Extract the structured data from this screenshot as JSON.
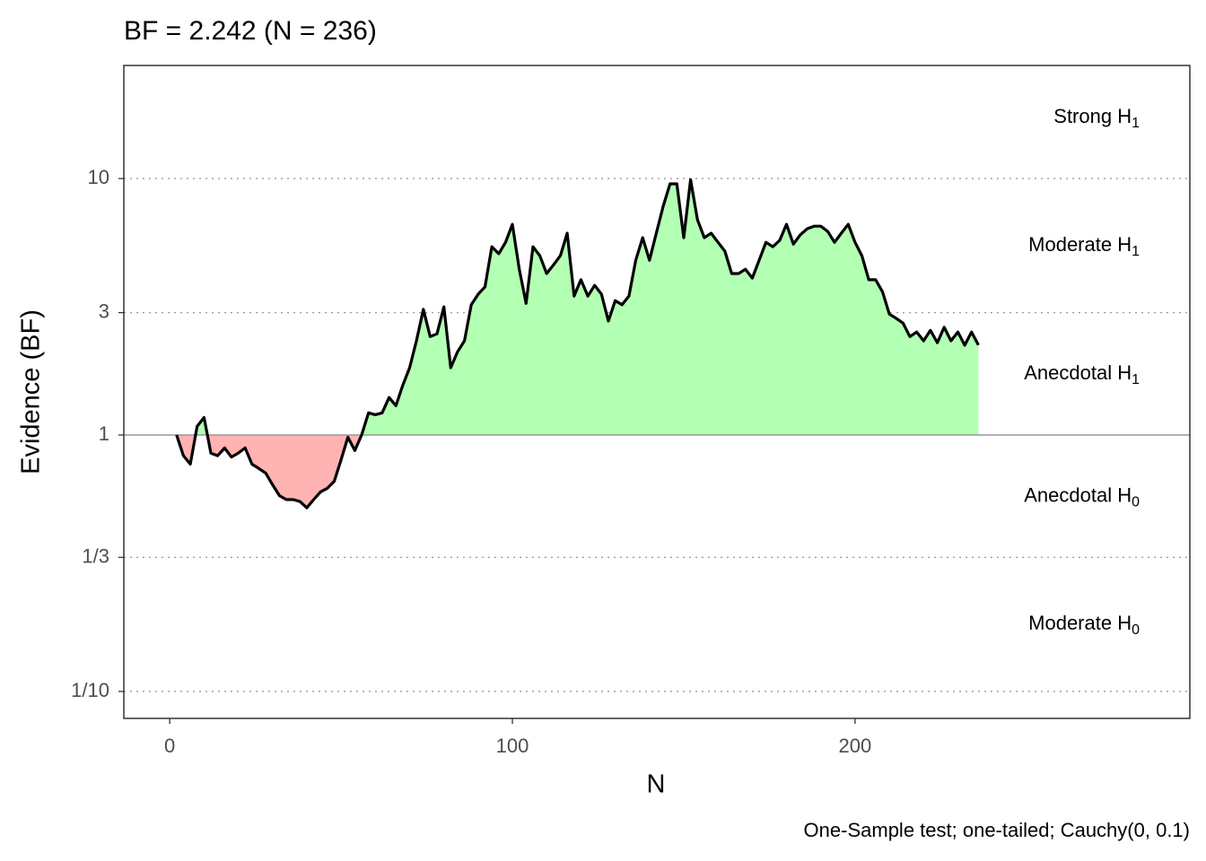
{
  "chart_data": {
    "type": "area",
    "title": "BF = 2.242 (N = 236)",
    "x_label": "N",
    "y_label": "Evidence (BF)",
    "caption": "One-Sample test; one-tailed; Cauchy(0, 0.1)",
    "log_y": true,
    "grid": true,
    "baseline": 1,
    "xlim": [
      -13.4,
      297.7
    ],
    "xticks": [
      0,
      100,
      200
    ],
    "ylim": [
      0.0785,
      27.6
    ],
    "yticks": [
      {
        "value": 0.1,
        "label": "1/10"
      },
      {
        "value": 0.3333,
        "label": "1/3"
      },
      1,
      3,
      10
    ],
    "line_color": "#000000",
    "fill_above": "#b3ffb3",
    "fill_below": "#ffb3b3",
    "annotations": [
      {
        "text": "Strong H",
        "subscript": "1",
        "y": 17.32
      },
      {
        "text": "Moderate H",
        "subscript": "1",
        "y": 5.48
      },
      {
        "text": "Anecdotal H",
        "subscript": "1",
        "y": 1.73
      },
      {
        "text": "Anecdotal H",
        "subscript": "0",
        "y": 0.577
      },
      {
        "text": "Moderate H",
        "subscript": "0",
        "y": 0.183
      }
    ],
    "x": [
      2,
      4,
      6,
      8,
      10,
      12,
      14,
      16,
      18,
      20,
      22,
      24,
      26,
      28,
      30,
      32,
      34,
      36,
      38,
      40,
      42,
      44,
      46,
      48,
      50,
      52,
      54,
      56,
      58,
      60,
      62,
      64,
      66,
      68,
      70,
      72,
      74,
      76,
      78,
      80,
      82,
      84,
      86,
      88,
      90,
      92,
      94,
      96,
      98,
      100,
      102,
      104,
      106,
      108,
      110,
      112,
      114,
      116,
      118,
      120,
      122,
      124,
      126,
      128,
      130,
      132,
      134,
      136,
      138,
      140,
      142,
      144,
      146,
      148,
      150,
      152,
      154,
      156,
      158,
      160,
      162,
      164,
      166,
      168,
      170,
      172,
      174,
      176,
      178,
      180,
      182,
      184,
      186,
      188,
      190,
      192,
      194,
      196,
      198,
      200,
      202,
      204,
      206,
      208,
      210,
      212,
      214,
      216,
      218,
      220,
      222,
      224,
      226,
      228,
      230,
      232,
      234,
      236
    ],
    "values": [
      1.0,
      0.83,
      0.77,
      1.08,
      1.17,
      0.85,
      0.83,
      0.89,
      0.82,
      0.85,
      0.89,
      0.77,
      0.74,
      0.71,
      0.64,
      0.58,
      0.56,
      0.56,
      0.55,
      0.52,
      0.56,
      0.6,
      0.62,
      0.66,
      0.8,
      0.98,
      0.87,
      1.0,
      1.22,
      1.2,
      1.22,
      1.4,
      1.3,
      1.56,
      1.83,
      2.33,
      3.09,
      2.42,
      2.48,
      3.16,
      1.83,
      2.11,
      2.33,
      3.22,
      3.54,
      3.78,
      5.42,
      5.09,
      5.64,
      6.63,
      4.43,
      3.26,
      5.42,
      5.0,
      4.26,
      4.61,
      5.0,
      6.12,
      3.48,
      4.03,
      3.48,
      3.83,
      3.54,
      2.78,
      3.34,
      3.22,
      3.48,
      4.8,
      5.88,
      4.8,
      6.12,
      7.8,
      9.53,
      9.53,
      5.88,
      9.9,
      6.9,
      5.88,
      6.12,
      5.64,
      5.21,
      4.26,
      4.26,
      4.43,
      4.09,
      4.8,
      5.64,
      5.42,
      5.74,
      6.63,
      5.55,
      6.03,
      6.37,
      6.52,
      6.52,
      6.22,
      5.64,
      6.12,
      6.63,
      5.64,
      5.0,
      4.03,
      4.03,
      3.62,
      2.96,
      2.85,
      2.73,
      2.42,
      2.52,
      2.33,
      2.56,
      2.29,
      2.63,
      2.33,
      2.52,
      2.24,
      2.52,
      2.242
    ]
  }
}
